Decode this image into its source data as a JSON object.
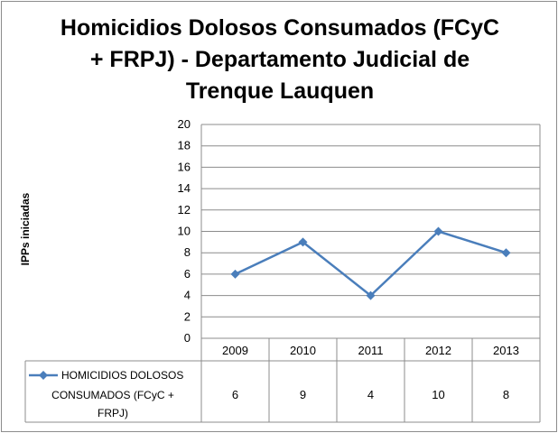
{
  "chart_data": {
    "type": "line",
    "title": "Homicidios Dolosos Consumados (FCyC + FRPJ) - Departamento Judicial de Trenque Lauquen",
    "title_lines": [
      "Homicidios Dolosos Consumados (FCyC",
      "+ FRPJ) - Departamento Judicial de",
      "Trenque Lauquen"
    ],
    "ylabel": "IPPs iniciadas",
    "xlabel": "",
    "categories": [
      "2009",
      "2010",
      "2011",
      "2012",
      "2013"
    ],
    "yticks": [
      "0",
      "2",
      "4",
      "6",
      "8",
      "10",
      "12",
      "14",
      "16",
      "18",
      "20"
    ],
    "ylim": [
      0,
      20
    ],
    "grid": true,
    "data_table": true,
    "series": [
      {
        "name": "HOMICIDIOS DOLOSOS CONSUMADOS (FCyC + FRPJ)",
        "name_lines": [
          "HOMICIDIOS DOLOSOS",
          "CONSUMADOS (FCyC +",
          "FRPJ)"
        ],
        "values": [
          6,
          9,
          4,
          10,
          8
        ],
        "color": "#4a7ebb",
        "marker": "diamond"
      }
    ]
  }
}
